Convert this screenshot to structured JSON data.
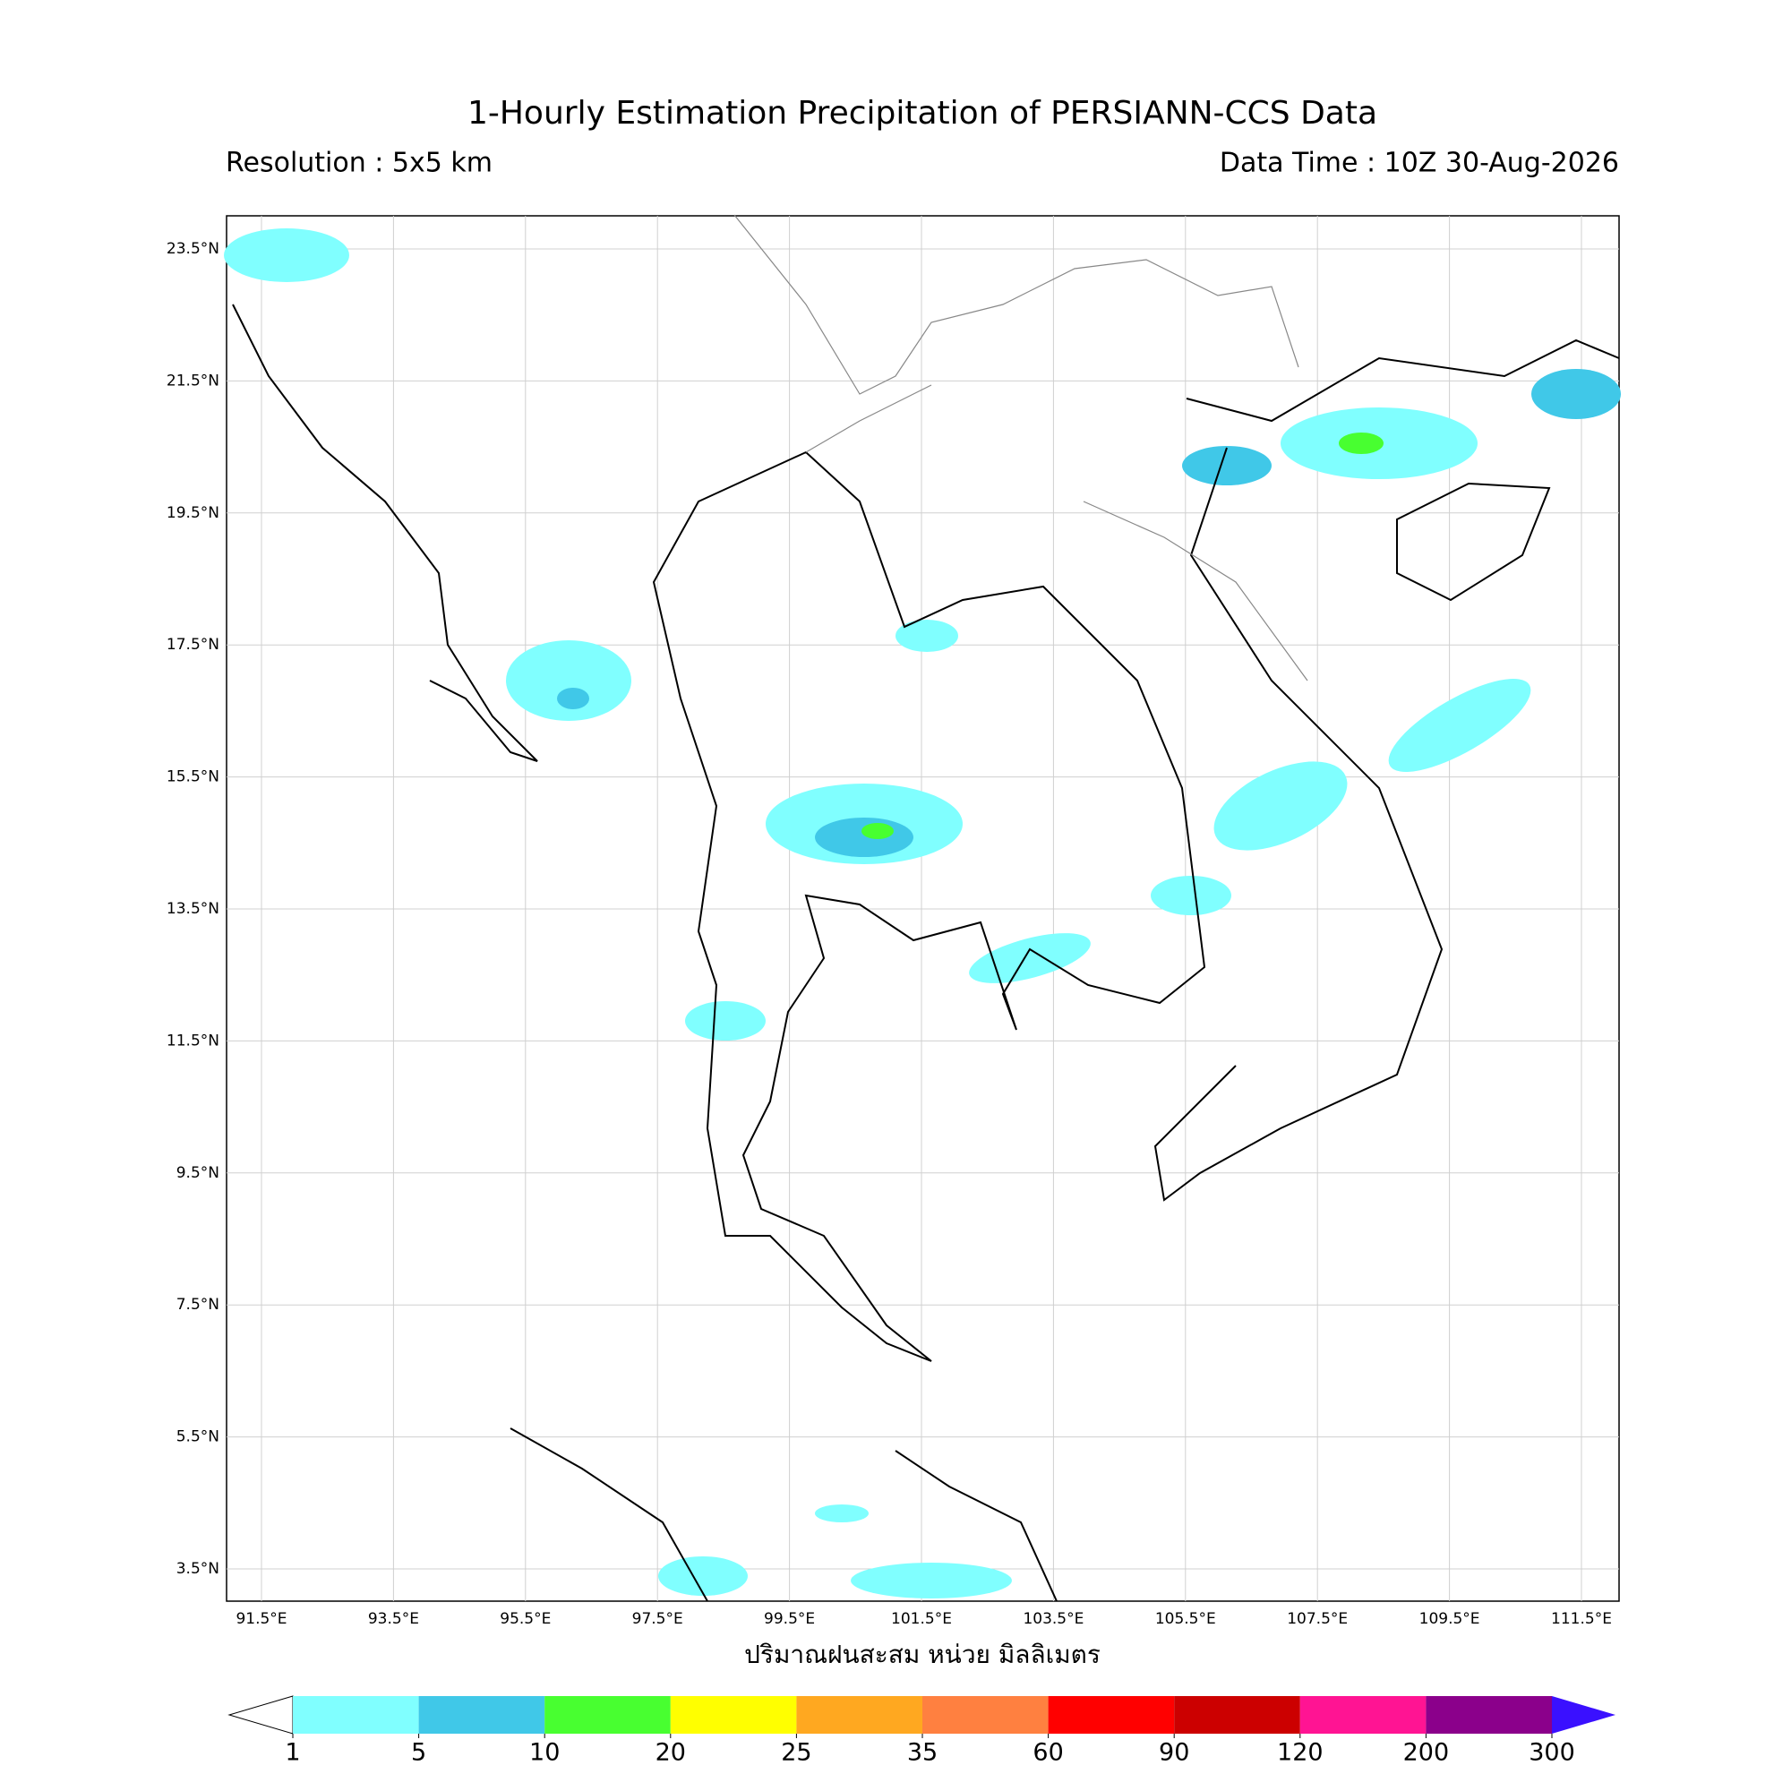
{
  "title": "1-Hourly Estimation Precipitation of PERSIANN-CCS Data",
  "resolution": "Resolution : 5x5 km",
  "data_time": "Data Time : 10Z 30-Aug-2026",
  "map": {
    "lat_ticks": [
      "23.5°N",
      "21.5°N",
      "19.5°N",
      "17.5°N",
      "15.5°N",
      "13.5°N",
      "11.5°N",
      "9.5°N",
      "7.5°N",
      "5.5°N",
      "3.5°N"
    ],
    "lon_ticks": [
      "91.5°E",
      "93.5°E",
      "95.5°E",
      "97.5°E",
      "99.5°E",
      "101.5°E",
      "103.5°E",
      "105.5°E",
      "107.5°E",
      "109.5°E",
      "111.5°E"
    ]
  },
  "xlabel": "ปริมาณฝนสะสม หน่วย มิลลิเมตร",
  "colorbar": {
    "levels": [
      1,
      5,
      10,
      20,
      25,
      35,
      60,
      90,
      120,
      200,
      300
    ],
    "colors": [
      "#80ffff",
      "#40c8e8",
      "#48ff30",
      "#ffff00",
      "#ffa820",
      "#ff8040",
      "#ff0000",
      "#cc0000",
      "#ff1493",
      "#8b008b"
    ],
    "under_color": "#ffffff",
    "over_color": "#3a10ff"
  }
}
